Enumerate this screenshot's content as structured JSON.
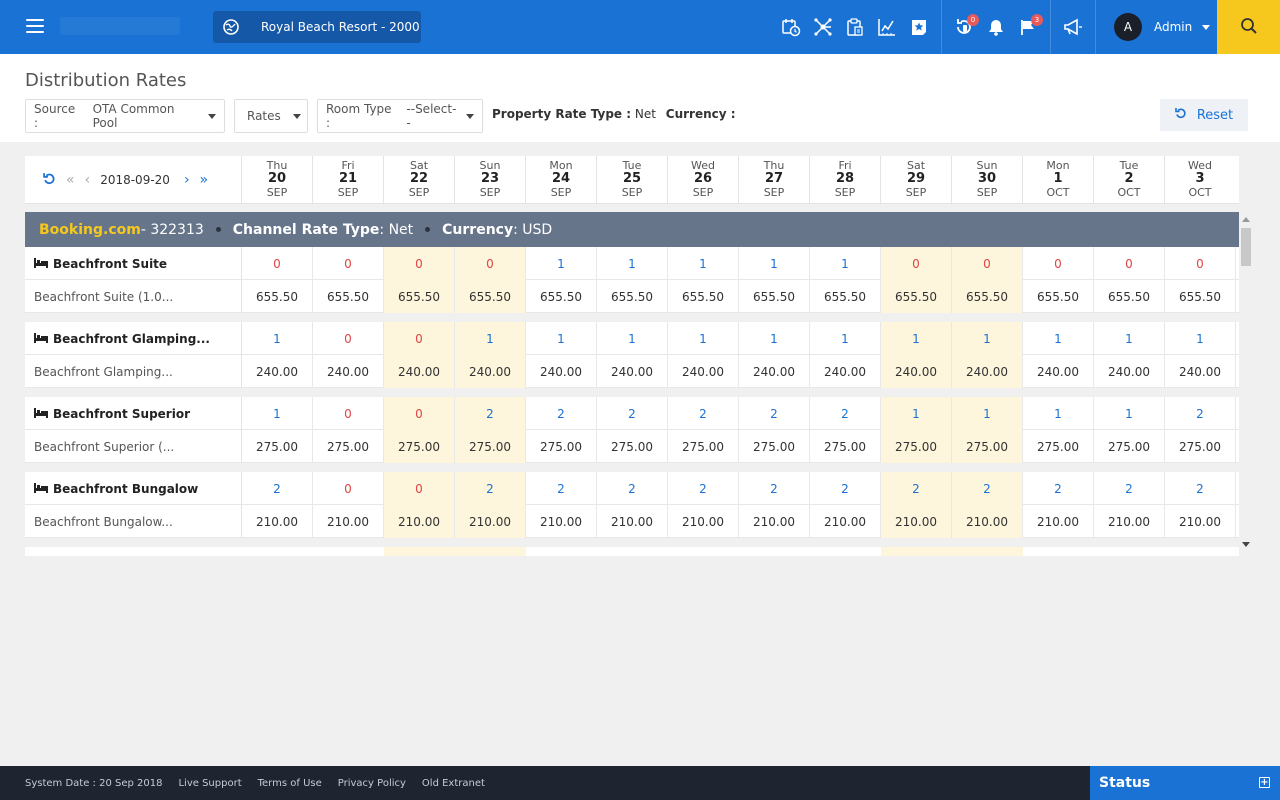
{
  "topbar": {
    "property_name": "Royal Beach Resort - 2000",
    "icons": [
      {
        "name": "calendar-clock-icon",
        "badge": null
      },
      {
        "name": "network-icon",
        "badge": null
      },
      {
        "name": "clipboard-icon",
        "badge": null
      },
      {
        "name": "chart-icon",
        "badge": null
      },
      {
        "name": "star-note-icon",
        "badge": null
      }
    ],
    "alerts": [
      {
        "name": "rotate-phone-icon",
        "badge": "0"
      },
      {
        "name": "bell-icon",
        "badge": null
      },
      {
        "name": "flag-icon",
        "badge": "3"
      }
    ],
    "announce_icon": "megaphone-icon",
    "user": {
      "initial": "A",
      "name": "Admin"
    }
  },
  "page": {
    "title": "Distribution Rates",
    "source_label": "Source :",
    "source_value": "OTA Common Pool",
    "rates_label": "Rates",
    "room_type_label": "Room Type :",
    "room_type_value": "--Select--",
    "property_rate_type_label": "Property Rate Type :",
    "property_rate_type_value": "Net",
    "currency_label": "Currency :",
    "reset_label": "Reset"
  },
  "grid": {
    "current_date": "2018-09-20",
    "days": [
      {
        "dow": "Thu",
        "day": "20",
        "month": "SEP",
        "weekend": false
      },
      {
        "dow": "Fri",
        "day": "21",
        "month": "SEP",
        "weekend": false
      },
      {
        "dow": "Sat",
        "day": "22",
        "month": "SEP",
        "weekend": true
      },
      {
        "dow": "Sun",
        "day": "23",
        "month": "SEP",
        "weekend": true
      },
      {
        "dow": "Mon",
        "day": "24",
        "month": "SEP",
        "weekend": false
      },
      {
        "dow": "Tue",
        "day": "25",
        "month": "SEP",
        "weekend": false
      },
      {
        "dow": "Wed",
        "day": "26",
        "month": "SEP",
        "weekend": false
      },
      {
        "dow": "Thu",
        "day": "27",
        "month": "SEP",
        "weekend": false
      },
      {
        "dow": "Fri",
        "day": "28",
        "month": "SEP",
        "weekend": false
      },
      {
        "dow": "Sat",
        "day": "29",
        "month": "SEP",
        "weekend": true
      },
      {
        "dow": "Sun",
        "day": "30",
        "month": "SEP",
        "weekend": true
      },
      {
        "dow": "Mon",
        "day": "1",
        "month": "OCT",
        "weekend": false
      },
      {
        "dow": "Tue",
        "day": "2",
        "month": "OCT",
        "weekend": false
      },
      {
        "dow": "Wed",
        "day": "3",
        "month": "OCT",
        "weekend": false
      }
    ],
    "channel": {
      "name": "Booking.com",
      "id": " - 322313",
      "rate_type_label": "Channel Rate Type",
      "rate_type_value": " : Net",
      "currency_label": "Currency",
      "currency_value": " : USD"
    },
    "rooms": [
      {
        "name": "Beachfront Suite",
        "plan": "Beachfront Suite (1.0...",
        "availability": [
          "0",
          "0",
          "0",
          "0",
          "1",
          "1",
          "1",
          "1",
          "1",
          "0",
          "0",
          "0",
          "0",
          "0"
        ],
        "rates": [
          "655.50",
          "655.50",
          "655.50",
          "655.50",
          "655.50",
          "655.50",
          "655.50",
          "655.50",
          "655.50",
          "655.50",
          "655.50",
          "655.50",
          "655.50",
          "655.50"
        ]
      },
      {
        "name": "Beachfront Glamping...",
        "plan": "Beachfront Glamping...",
        "availability": [
          "1",
          "0",
          "0",
          "1",
          "1",
          "1",
          "1",
          "1",
          "1",
          "1",
          "1",
          "1",
          "1",
          "1"
        ],
        "rates": [
          "240.00",
          "240.00",
          "240.00",
          "240.00",
          "240.00",
          "240.00",
          "240.00",
          "240.00",
          "240.00",
          "240.00",
          "240.00",
          "240.00",
          "240.00",
          "240.00"
        ]
      },
      {
        "name": "Beachfront Superior",
        "plan": "Beachfront Superior (...",
        "availability": [
          "1",
          "0",
          "0",
          "2",
          "2",
          "2",
          "2",
          "2",
          "2",
          "1",
          "1",
          "1",
          "1",
          "2"
        ],
        "rates": [
          "275.00",
          "275.00",
          "275.00",
          "275.00",
          "275.00",
          "275.00",
          "275.00",
          "275.00",
          "275.00",
          "275.00",
          "275.00",
          "275.00",
          "275.00",
          "275.00"
        ]
      },
      {
        "name": "Beachfront Bungalow",
        "plan": "Beachfront Bungalow...",
        "availability": [
          "2",
          "0",
          "0",
          "2",
          "2",
          "2",
          "2",
          "2",
          "2",
          "2",
          "2",
          "2",
          "2",
          "2"
        ],
        "rates": [
          "210.00",
          "210.00",
          "210.00",
          "210.00",
          "210.00",
          "210.00",
          "210.00",
          "210.00",
          "210.00",
          "210.00",
          "210.00",
          "210.00",
          "210.00",
          "210.00"
        ]
      }
    ]
  },
  "footer": {
    "system_date": "System Date : 20 Sep 2018",
    "links": [
      "Live Support",
      "Terms of Use",
      "Privacy Policy",
      "Old Extranet"
    ],
    "status_label": "Status"
  },
  "colors": {
    "primary": "#1a73d4",
    "accent": "#f6c81e",
    "zero_availability": "#e04545",
    "weekend_bg": "#fdf6dc"
  }
}
